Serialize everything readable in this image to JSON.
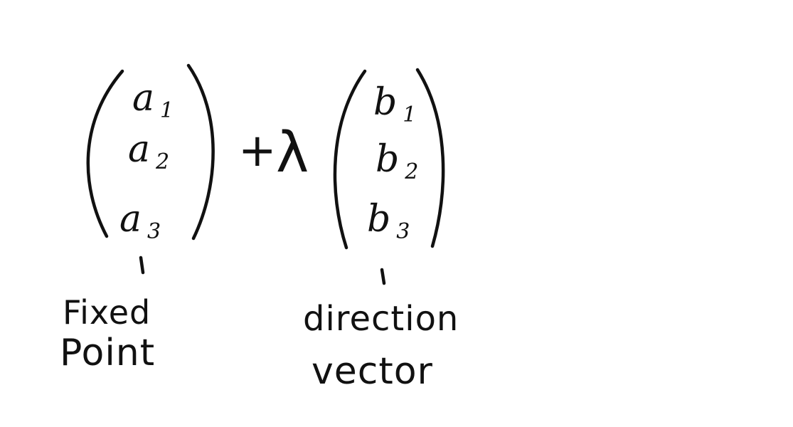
{
  "fixed_point": {
    "entries": [
      {
        "base": "a",
        "sub": "1"
      },
      {
        "base": "a",
        "sub": "2"
      },
      {
        "base": "a",
        "sub": "3"
      }
    ],
    "label_line1": "Fixed",
    "label_line2": "Point"
  },
  "operator": {
    "plus": "+",
    "lambda": "λ"
  },
  "direction_vector": {
    "entries": [
      {
        "base": "b",
        "sub": "1"
      },
      {
        "base": "b",
        "sub": "2"
      },
      {
        "base": "b",
        "sub": "3"
      }
    ],
    "label_line1": "direction",
    "label_line2": "vector"
  },
  "colors": {
    "ink": "#111111",
    "background": "#ffffff"
  }
}
